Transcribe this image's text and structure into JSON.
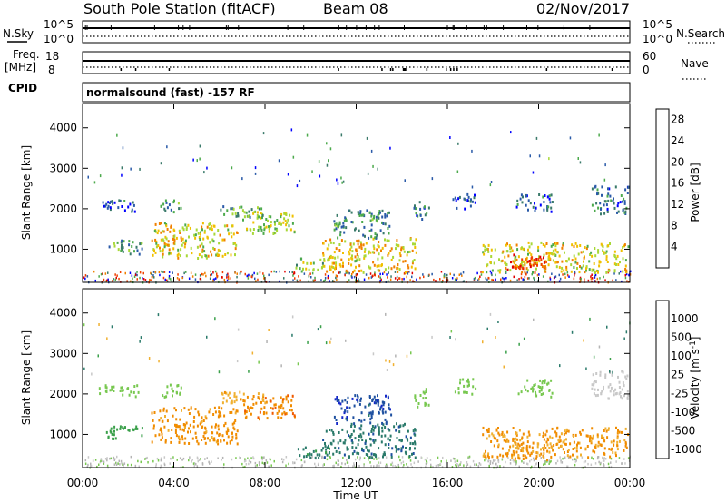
{
  "header": {
    "station": "South Pole Station (fitACF)",
    "beam": "Beam 08",
    "date": "02/Nov/2017"
  },
  "top_panels": {
    "nsky_label": "N.Sky",
    "nsky_ticks": [
      "10^5",
      "10^0"
    ],
    "nsearch_label": "N.Search",
    "nsearch_ticks": [
      "10^5",
      "10^0"
    ],
    "freq_label_1": "Freq.",
    "freq_label_2": "[MHz]",
    "freq_ticks": [
      "18",
      "8"
    ],
    "nave_label": "Nave",
    "nave_ticks": [
      "60",
      "0"
    ],
    "cpid_label": "CPID",
    "cpid_text": "normalsound (fast) -157 RF"
  },
  "colors": {
    "power": [
      "#0000ff",
      "#2a5aa8",
      "#3a7a6a",
      "#4caa4c",
      "#a8d838",
      "#f0c000",
      "#f08000",
      "#f04000",
      "#e00000"
    ],
    "velocity": [
      "#e80000",
      "#f05a00",
      "#f08c00",
      "#f0b030",
      "#c8c8c8",
      "#b4b4b4",
      "#78c850",
      "#3aa04a",
      "#2a7a6a",
      "#1e50a0",
      "#1428c8"
    ],
    "ground": "#808080"
  },
  "chart_data": [
    {
      "type": "heatmap",
      "panel": "power",
      "ylabel": "Slant Range [km]",
      "xlabel": "",
      "ylim": [
        180,
        4600
      ],
      "xlim": [
        0,
        24
      ],
      "xticks": [
        "00:00",
        "04:00",
        "08:00",
        "12:00",
        "16:00",
        "20:00",
        "00:00"
      ],
      "yticks": [
        "1000",
        "2000",
        "3000",
        "4000"
      ],
      "colorbar": {
        "label": "Power [dB]",
        "range": [
          0,
          30
        ],
        "ticks": [
          "4",
          "8",
          "12",
          "16",
          "20",
          "24",
          "28"
        ]
      },
      "regions": [
        {
          "t0": 0.7,
          "t1": 2.5,
          "r0": 1950,
          "r1": 2250,
          "v": 6
        },
        {
          "t0": 1.0,
          "t1": 2.6,
          "r0": 900,
          "r1": 1250,
          "v": 10
        },
        {
          "t0": 3.0,
          "t1": 6.8,
          "r0": 800,
          "r1": 1700,
          "v": 17
        },
        {
          "t0": 3.4,
          "t1": 4.3,
          "r0": 1950,
          "r1": 2300,
          "v": 9
        },
        {
          "t0": 7.0,
          "t1": 9.3,
          "r0": 1400,
          "r1": 2000,
          "v": 15
        },
        {
          "t0": 6.0,
          "t1": 8.0,
          "r0": 1800,
          "r1": 2100,
          "v": 11
        },
        {
          "t0": 9.3,
          "t1": 10.8,
          "r0": 450,
          "r1": 800,
          "v": 13
        },
        {
          "t0": 10.5,
          "t1": 14.6,
          "r0": 450,
          "r1": 1300,
          "v": 18
        },
        {
          "t0": 11.0,
          "t1": 13.5,
          "r0": 1300,
          "r1": 2000,
          "v": 9
        },
        {
          "t0": 14.5,
          "t1": 15.2,
          "r0": 1700,
          "r1": 2200,
          "v": 8
        },
        {
          "t0": 16.2,
          "t1": 17.2,
          "r0": 2000,
          "r1": 2400,
          "v": 6
        },
        {
          "t0": 17.5,
          "t1": 23.9,
          "r0": 450,
          "r1": 1200,
          "v": 17
        },
        {
          "t0": 18.6,
          "t1": 20.4,
          "r0": 400,
          "r1": 900,
          "v": 26
        },
        {
          "t0": 19.0,
          "t1": 20.6,
          "r0": 1950,
          "r1": 2400,
          "v": 6
        },
        {
          "t0": 22.3,
          "t1": 23.9,
          "r0": 1900,
          "r1": 2600,
          "v": 7
        }
      ]
    },
    {
      "type": "heatmap",
      "panel": "velocity",
      "ylabel": "Slant Range [km]",
      "xlabel": "Time UT",
      "ylim": [
        180,
        4600
      ],
      "xlim": [
        0,
        24
      ],
      "xticks": [
        "00:00",
        "04:00",
        "08:00",
        "12:00",
        "16:00",
        "20:00",
        "00:00"
      ],
      "yticks": [
        "1000",
        "2000",
        "3000",
        "4000"
      ],
      "colorbar": {
        "label": "Velocity [m s",
        "label_sup": "-1",
        "label_end": "]",
        "ticks": [
          "1000",
          "500",
          "100",
          "25",
          "-25",
          "-100",
          "-500",
          "-1000"
        ]
      },
      "regions": [
        {
          "t0": 0.7,
          "t1": 2.5,
          "r0": 1950,
          "r1": 2250,
          "v": 10
        },
        {
          "t0": 1.0,
          "t1": 2.6,
          "r0": 900,
          "r1": 1250,
          "v": 60
        },
        {
          "t0": 3.0,
          "t1": 6.8,
          "r0": 800,
          "r1": 1700,
          "v": -350
        },
        {
          "t0": 3.4,
          "t1": 4.3,
          "r0": 1950,
          "r1": 2300,
          "v": 5
        },
        {
          "t0": 7.0,
          "t1": 9.3,
          "r0": 1400,
          "r1": 2000,
          "v": -420
        },
        {
          "t0": 6.0,
          "t1": 8.0,
          "r0": 1800,
          "r1": 2100,
          "v": -200
        },
        {
          "t0": 9.3,
          "t1": 10.8,
          "r0": 450,
          "r1": 800,
          "v": 150
        },
        {
          "t0": 10.5,
          "t1": 14.6,
          "r0": 450,
          "r1": 1300,
          "v": 200
        },
        {
          "t0": 11.0,
          "t1": 13.5,
          "r0": 1300,
          "r1": 2000,
          "v": 400
        },
        {
          "t0": 14.5,
          "t1": 15.2,
          "r0": 1700,
          "r1": 2200,
          "v": 5
        },
        {
          "t0": 16.2,
          "t1": 17.2,
          "r0": 2000,
          "r1": 2400,
          "v": 5
        },
        {
          "t0": 17.5,
          "t1": 23.9,
          "r0": 450,
          "r1": 1200,
          "v": -300
        },
        {
          "t0": 18.6,
          "t1": 20.4,
          "r0": 400,
          "r1": 900,
          "v": -300
        },
        {
          "t0": 19.0,
          "t1": 20.6,
          "r0": 1950,
          "r1": 2400,
          "v": 5
        },
        {
          "t0": 22.3,
          "t1": 23.9,
          "r0": 1900,
          "r1": 2600,
          "v": -60
        }
      ]
    }
  ]
}
